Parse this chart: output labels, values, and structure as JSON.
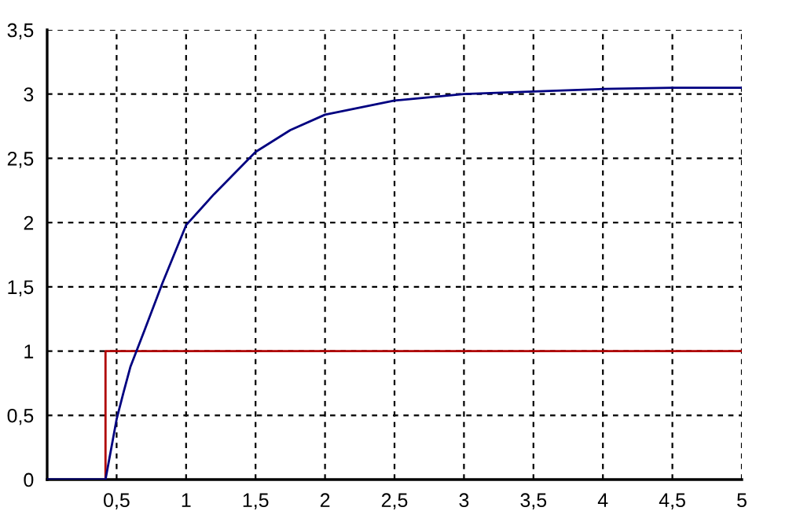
{
  "chart_data": {
    "type": "line",
    "series": [
      {
        "color": "#b00000",
        "x": [
          0.42,
          0.42,
          5
        ],
        "values": [
          0,
          1,
          1
        ]
      },
      {
        "color": "#000080",
        "x": [
          0,
          0.42,
          0.5,
          0.55,
          0.6,
          0.7,
          0.83,
          1,
          1.2,
          1.5,
          1.75,
          2,
          2.5,
          3,
          3.5,
          4,
          4.5,
          5
        ],
        "values": [
          0,
          0,
          0.47,
          0.68,
          0.88,
          1.16,
          1.53,
          1.98,
          2.22,
          2.55,
          2.72,
          2.84,
          2.95,
          3.0,
          3.02,
          3.04,
          3.05,
          3.05
        ]
      }
    ],
    "xlim": [
      0,
      5
    ],
    "ylim": [
      0,
      3.5
    ],
    "xticks": [
      {
        "value": 0.5,
        "label": "0,5"
      },
      1,
      {
        "value": 1.5,
        "label": "1,5"
      },
      2,
      {
        "value": 2.5,
        "label": "2,5"
      },
      3,
      {
        "value": 3.5,
        "label": "3,5"
      },
      4,
      {
        "value": 4.5,
        "label": "4,5"
      },
      5
    ],
    "yticks": [
      0,
      {
        "value": 0.5,
        "label": "0,5"
      },
      1,
      {
        "value": 1.5,
        "label": "1,5"
      },
      2,
      {
        "value": 2.5,
        "label": "2,5"
      },
      3,
      {
        "value": 3.5,
        "label": "3,5"
      }
    ],
    "grid": true,
    "line_style": "solid",
    "marker": "none"
  }
}
